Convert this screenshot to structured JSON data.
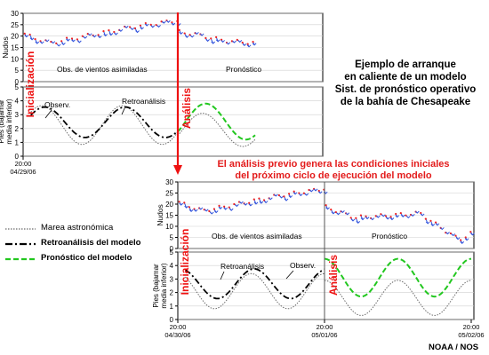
{
  "title_block": [
    "Ejemplo de arranque",
    "en caliente de un modelo",
    "Sist. de pronóstico operativo",
    "de la bahía de Chesapeake"
  ],
  "mid_caption": [
    "El análisis previo genera las condiciones iniciales",
    "del próximo ciclo de ejecución del modelo"
  ],
  "credit": "NOAA / NOS",
  "legend": [
    {
      "label": "Marea astronómica",
      "style": "dotted",
      "color": "#6b6b6b"
    },
    {
      "label": "Retroanálisis del modelo",
      "style": "dashdot",
      "color": "#000000"
    },
    {
      "label": "Pronóstico del modelo",
      "style": "dashed",
      "color": "#22c71f"
    }
  ],
  "colors": {
    "arrow": "#3355dd",
    "arrow_tip": "#ee2222",
    "analysis": "#ee1111"
  },
  "chart_data": [
    {
      "type": "line",
      "run": "first",
      "x_ticks": [
        {
          "x": 0,
          "label": [
            "20:00",
            "04/29/06"
          ]
        }
      ],
      "wind": {
        "ylabel": "Nudos",
        "ylim": [
          0,
          30
        ],
        "yticks": [
          0,
          5,
          10,
          15,
          20,
          25,
          30
        ],
        "x_end": 1.5,
        "assim_label": "Obs. de vientos asimiladas",
        "forecast_label": "Pronóstico",
        "hindcast": {
          "x": [
            0,
            0.17,
            0.4,
            0.7,
            1.0
          ],
          "y": [
            21,
            17,
            20,
            24,
            27
          ]
        },
        "forecast": {
          "x": [
            1.0,
            1.1,
            1.3,
            1.5
          ],
          "y": [
            22,
            21,
            18,
            17
          ]
        }
      },
      "water": {
        "ylabel": [
          "Pies (bajamar",
          "media inferior)"
        ],
        "ylim": [
          0,
          5
        ],
        "yticks": [
          0,
          1,
          2,
          3,
          4,
          5
        ],
        "x_end": 1.5,
        "series": [
          {
            "name": "Observ.",
            "kind": "obs",
            "start": 0.05,
            "end": 1.0,
            "mean": 2.25,
            "amp": 1.4,
            "period": 0.52,
            "phase": 0.12
          },
          {
            "name": "Retroanálisis",
            "kind": "hindcast",
            "start": 0.05,
            "end": 1.0,
            "mean": 2.45,
            "amp": 1.1,
            "period": 0.52,
            "phase": 0.14
          },
          {
            "name": "",
            "kind": "tide",
            "start": 1.0,
            "end": 1.5,
            "mean": 1.9,
            "amp": 1.2,
            "period": 0.52,
            "phase": 0.12
          },
          {
            "name": "",
            "kind": "forecast",
            "start": 1.0,
            "end": 1.5,
            "mean": 2.5,
            "amp": 1.3,
            "period": 0.52,
            "phase": 0.14
          }
        ]
      },
      "analysis_x": 1.0,
      "init_label": "Inicialización",
      "analysis_label": "Análisis"
    },
    {
      "type": "line",
      "run": "second",
      "x_ticks": [
        {
          "x": 0,
          "label": [
            "20:00",
            "04/30/06"
          ]
        },
        {
          "x": 1,
          "label": [
            "20:00",
            "05/01/06"
          ]
        },
        {
          "x": 2,
          "label": [
            "20:00",
            "05/02/06"
          ]
        }
      ],
      "wind": {
        "ylabel": "Nudos",
        "ylim": [
          0,
          30
        ],
        "yticks": [
          0,
          5,
          10,
          15,
          20,
          25,
          30
        ],
        "x_end": 2.0,
        "assim_label": "Obs. de vientos asimiladas",
        "forecast_label": "Pronóstico",
        "hindcast": {
          "x": [
            0,
            0.17,
            0.4,
            0.7,
            1.0
          ],
          "y": [
            21,
            17,
            20,
            24,
            27
          ]
        },
        "forecast": {
          "x": [
            1.0,
            1.2,
            1.45,
            1.65,
            1.8,
            1.92,
            2.0
          ],
          "y": [
            19,
            14,
            15,
            16,
            9,
            4,
            7
          ]
        }
      },
      "water": {
        "ylabel": [
          "Pies (bajamar",
          "media inferior)"
        ],
        "ylim": [
          0,
          5
        ],
        "yticks": [
          0,
          1,
          2,
          3,
          4,
          5
        ],
        "x_end": 2.0,
        "series": [
          {
            "name": "Observ.",
            "kind": "obs",
            "start": 0.05,
            "end": 1.0,
            "mean": 2.1,
            "amp": 1.3,
            "period": 0.5,
            "phase": 0.0
          },
          {
            "name": "Retroanálisis",
            "kind": "hindcast",
            "start": 0.05,
            "end": 1.0,
            "mean": 2.65,
            "amp": 1.1,
            "period": 0.5,
            "phase": 0.02
          },
          {
            "name": "",
            "kind": "tide",
            "start": 1.0,
            "end": 2.0,
            "mean": 1.6,
            "amp": 1.3,
            "period": 0.5,
            "phase": 0.0
          },
          {
            "name": "",
            "kind": "forecast",
            "start": 1.0,
            "end": 2.0,
            "mean": 3.1,
            "amp": 1.4,
            "period": 0.5,
            "phase": 0.0
          }
        ]
      },
      "analysis_x": 1.0,
      "init_label": "Inicialización",
      "analysis_label": "Análisis"
    }
  ]
}
